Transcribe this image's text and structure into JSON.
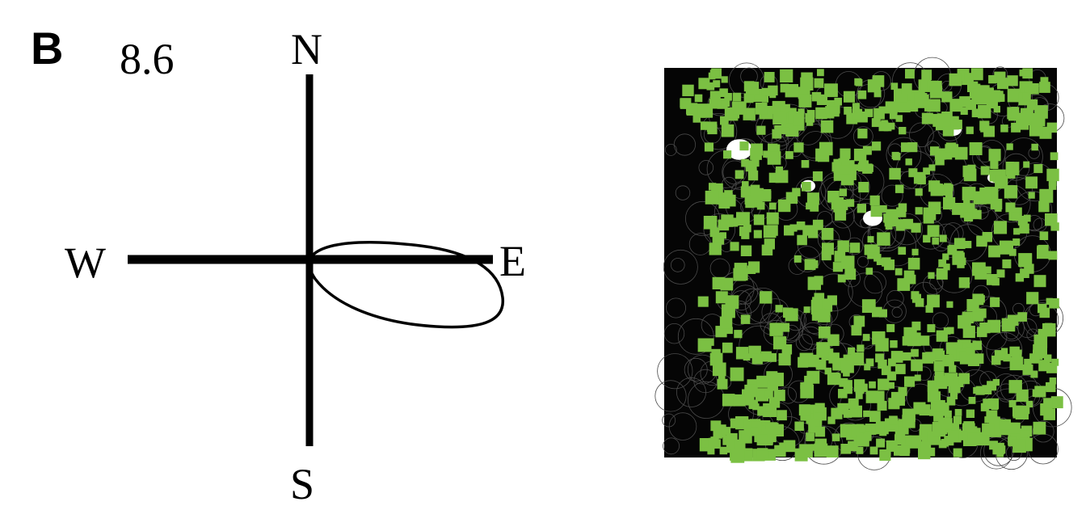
{
  "panel": {
    "letter": "B",
    "value": "8.6"
  },
  "compass": {
    "north": "N",
    "south": "S",
    "west": "W",
    "east": "E"
  },
  "colors": {
    "line": "#000000",
    "trail": "#1a1a1a",
    "highlight": "#7bc043"
  }
}
